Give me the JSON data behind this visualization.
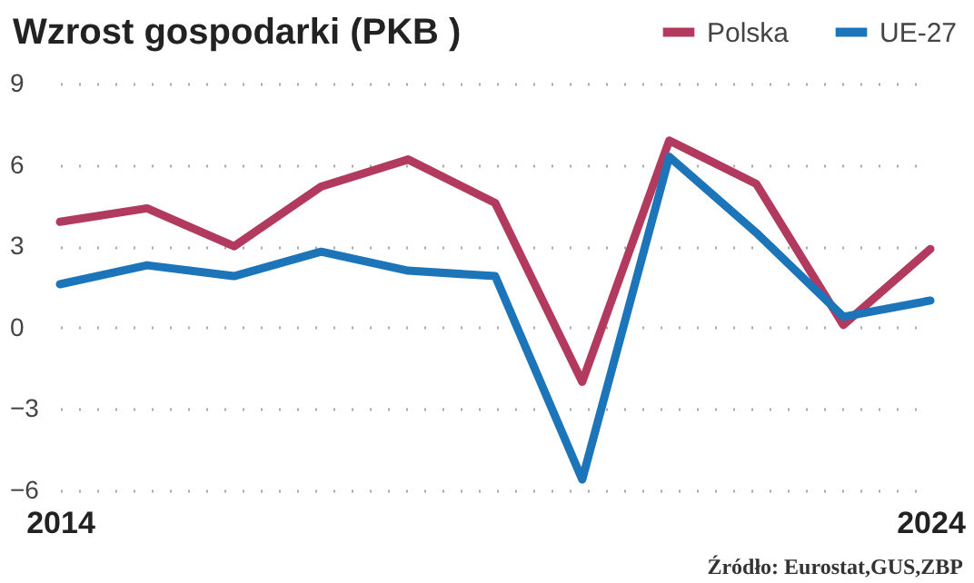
{
  "chart_data": {
    "type": "line",
    "title": "Wzrost gospodarki (PKB )",
    "x": [
      2014,
      2015,
      2016,
      2017,
      2018,
      2019,
      2020,
      2021,
      2022,
      2023,
      2024
    ],
    "xlim": [
      2014,
      2024
    ],
    "xticks": [
      2014,
      2024
    ],
    "ylim": [
      -6,
      9
    ],
    "yticks": [
      -6,
      -3,
      0,
      3,
      6,
      9
    ],
    "series": [
      {
        "name": "Polska",
        "color": "#b23a5e",
        "values": [
          3.9,
          4.4,
          3.0,
          5.2,
          6.2,
          4.6,
          -2.0,
          6.9,
          5.3,
          0.1,
          2.9
        ]
      },
      {
        "name": "UE-27",
        "color": "#1c74b9",
        "values": [
          1.6,
          2.3,
          1.9,
          2.8,
          2.1,
          1.9,
          -5.6,
          6.3,
          3.5,
          0.4,
          1.0
        ]
      }
    ],
    "grid": "y",
    "legend": "top right",
    "marker": "none",
    "line_style": "solid",
    "annotations": [
      "Źródło: Eurostat,GUS,ZBP"
    ]
  }
}
